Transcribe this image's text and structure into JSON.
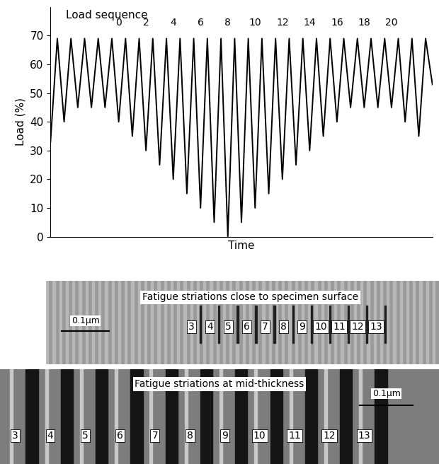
{
  "chart_data": {
    "type": "line",
    "title": "Load sequence",
    "xlabel": "Time",
    "ylabel": "Load (%)",
    "values": [
      33,
      69,
      40,
      69,
      45,
      69,
      45,
      69,
      45,
      69,
      40,
      69,
      35,
      69,
      30,
      69,
      25,
      69,
      20,
      69,
      15,
      69,
      10,
      69,
      5,
      69,
      0,
      69,
      5,
      69,
      10,
      69,
      15,
      69,
      20,
      69,
      25,
      69,
      30,
      69,
      35,
      69,
      40,
      69,
      45,
      69,
      45,
      69,
      45,
      69,
      45,
      69,
      40,
      69,
      35,
      69,
      53
    ],
    "sequence_labels": [
      null,
      null,
      null,
      null,
      null,
      null,
      null,
      null,
      null,
      null,
      "0",
      null,
      null,
      null,
      "2",
      null,
      null,
      null,
      "4",
      null,
      null,
      null,
      "6",
      null,
      null,
      null,
      "8",
      null,
      null,
      null,
      "10",
      null,
      null,
      null,
      "12",
      null,
      null,
      null,
      "14",
      null,
      null,
      null,
      "16",
      null,
      null,
      null,
      "18",
      null,
      null,
      null,
      "20",
      null,
      null,
      null,
      null,
      null,
      null
    ],
    "color": "#000000",
    "ylim": [
      0,
      80
    ],
    "yticks": [
      0,
      10,
      20,
      30,
      40,
      50,
      60,
      70
    ],
    "tick_labels": "y",
    "grid": false
  },
  "micrographs": [
    {
      "title": "Fatigue striations close to specimen surface",
      "scale_bar": "0.1μm",
      "labels": [
        "3",
        "4",
        "5",
        "6",
        "7",
        "8",
        "9",
        "10",
        "11",
        "12",
        "13"
      ]
    },
    {
      "title": "Fatigue striations at mid-thickness",
      "scale_bar": "0.1μm",
      "labels": [
        "3",
        "4",
        "5",
        "6",
        "7",
        "8",
        "9",
        "10",
        "11",
        "12",
        "13"
      ]
    }
  ]
}
